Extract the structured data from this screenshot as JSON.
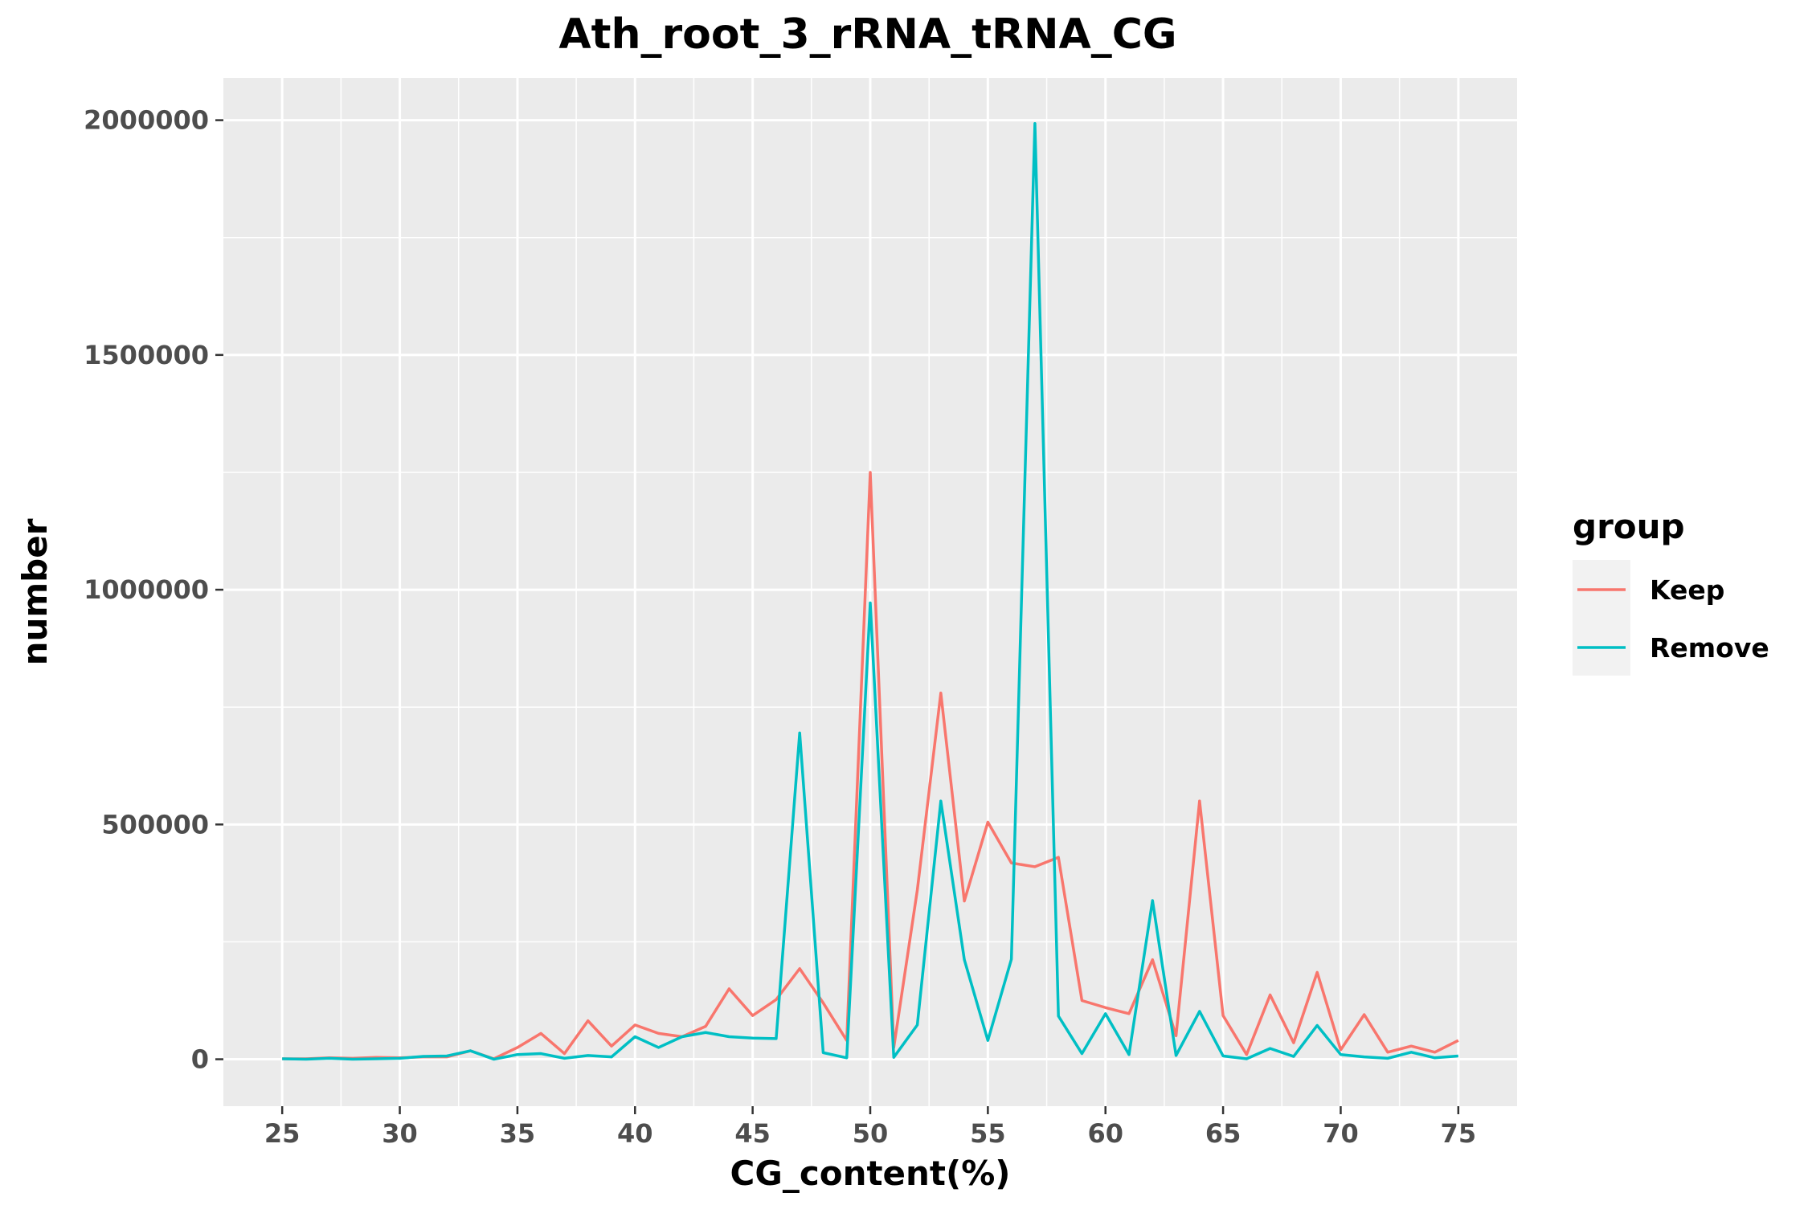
{
  "chart_data": {
    "type": "line",
    "title": "Ath_root_3_rRNA_tRNA_CG",
    "xlabel": "CG_content(%)",
    "ylabel": "number",
    "xlim": [
      22.5,
      77.5
    ],
    "ylim": [
      -100000,
      2090000
    ],
    "x_ticks": [
      25,
      30,
      35,
      40,
      45,
      50,
      55,
      60,
      65,
      70,
      75
    ],
    "y_ticks": [
      0,
      500000,
      1000000,
      1500000,
      2000000
    ],
    "y_tick_labels": [
      "0",
      "500000",
      "1000000",
      "1500000",
      "2000000"
    ],
    "grid": true,
    "legend": {
      "title": "group",
      "position": "right"
    },
    "x": [
      25,
      26,
      27,
      28,
      29,
      30,
      31,
      32,
      33,
      34,
      35,
      36,
      37,
      38,
      39,
      40,
      41,
      42,
      43,
      44,
      45,
      46,
      47,
      48,
      49,
      50,
      51,
      52,
      53,
      54,
      55,
      56,
      57,
      58,
      59,
      60,
      61,
      62,
      63,
      64,
      65,
      66,
      67,
      68,
      69,
      70,
      71,
      72,
      73,
      74,
      75
    ],
    "series": [
      {
        "name": "Keep",
        "color": "#F8766D",
        "values": [
          1000,
          1000,
          3000,
          2000,
          4000,
          3000,
          5000,
          5000,
          18000,
          1000,
          25000,
          55000,
          12000,
          82000,
          28000,
          73000,
          55000,
          48000,
          70000,
          150000,
          93000,
          127000,
          193000,
          120000,
          40000,
          1250000,
          25000,
          360000,
          780000,
          337000,
          505000,
          418000,
          410000,
          430000,
          125000,
          110000,
          97000,
          212000,
          50000,
          550000,
          93000,
          10000,
          137000,
          35000,
          185000,
          20000,
          95000,
          15000,
          28000,
          15000,
          40000
        ]
      },
      {
        "name": "Remove",
        "color": "#00BFC4",
        "values": [
          1000,
          0,
          2000,
          0,
          1000,
          2000,
          6000,
          7000,
          18000,
          0,
          10000,
          12000,
          2000,
          8000,
          5000,
          48000,
          25000,
          48000,
          57000,
          48000,
          45000,
          44000,
          695000,
          14000,
          3000,
          972000,
          4000,
          73000,
          550000,
          212000,
          40000,
          213000,
          1993000,
          92000,
          12000,
          97000,
          10000,
          338000,
          8000,
          102000,
          7000,
          1000,
          23000,
          6000,
          72000,
          10000,
          5000,
          2000,
          15000,
          3000,
          7000
        ]
      }
    ]
  }
}
